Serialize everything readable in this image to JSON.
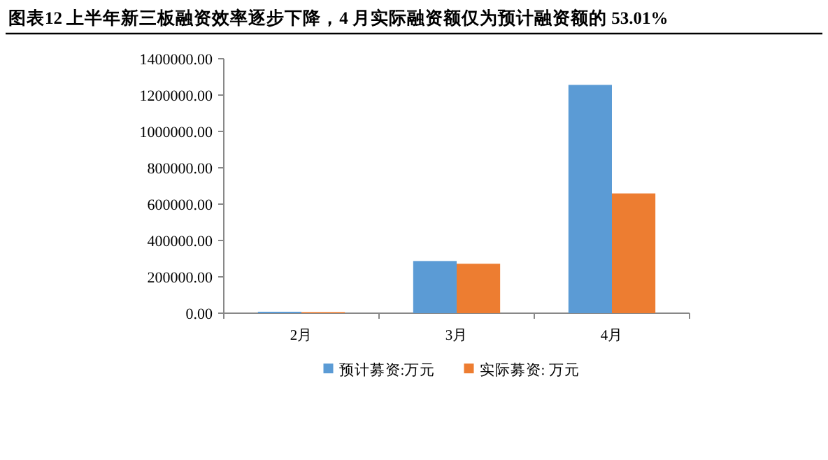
{
  "chart_data": {
    "type": "bar",
    "title": "图表12  上半年新三板融资效率逐步下降，4 月实际融资额仅为预计融资额的 53.01%",
    "categories": [
      "2月",
      "3月",
      "4月"
    ],
    "series": [
      {
        "name": "预计募资:万元",
        "color": "#5b9bd5",
        "values": [
          8000,
          287000,
          1256000
        ]
      },
      {
        "name": "实际募资: 万元",
        "color": "#ed7d31",
        "values": [
          6000,
          272000,
          659000
        ]
      }
    ],
    "ylim": [
      0,
      1400000
    ],
    "yticks": [
      {
        "value": 0,
        "label": "0.00"
      },
      {
        "value": 200000,
        "label": "200000.00"
      },
      {
        "value": 400000,
        "label": "400000.00"
      },
      {
        "value": 600000,
        "label": "600000.00"
      },
      {
        "value": 800000,
        "label": "800000.00"
      },
      {
        "value": 1000000,
        "label": "1000000.00"
      },
      {
        "value": 1200000,
        "label": "1200000.00"
      },
      {
        "value": 1400000,
        "label": "1400000.00"
      }
    ],
    "grid": false,
    "legend": "bottom"
  }
}
